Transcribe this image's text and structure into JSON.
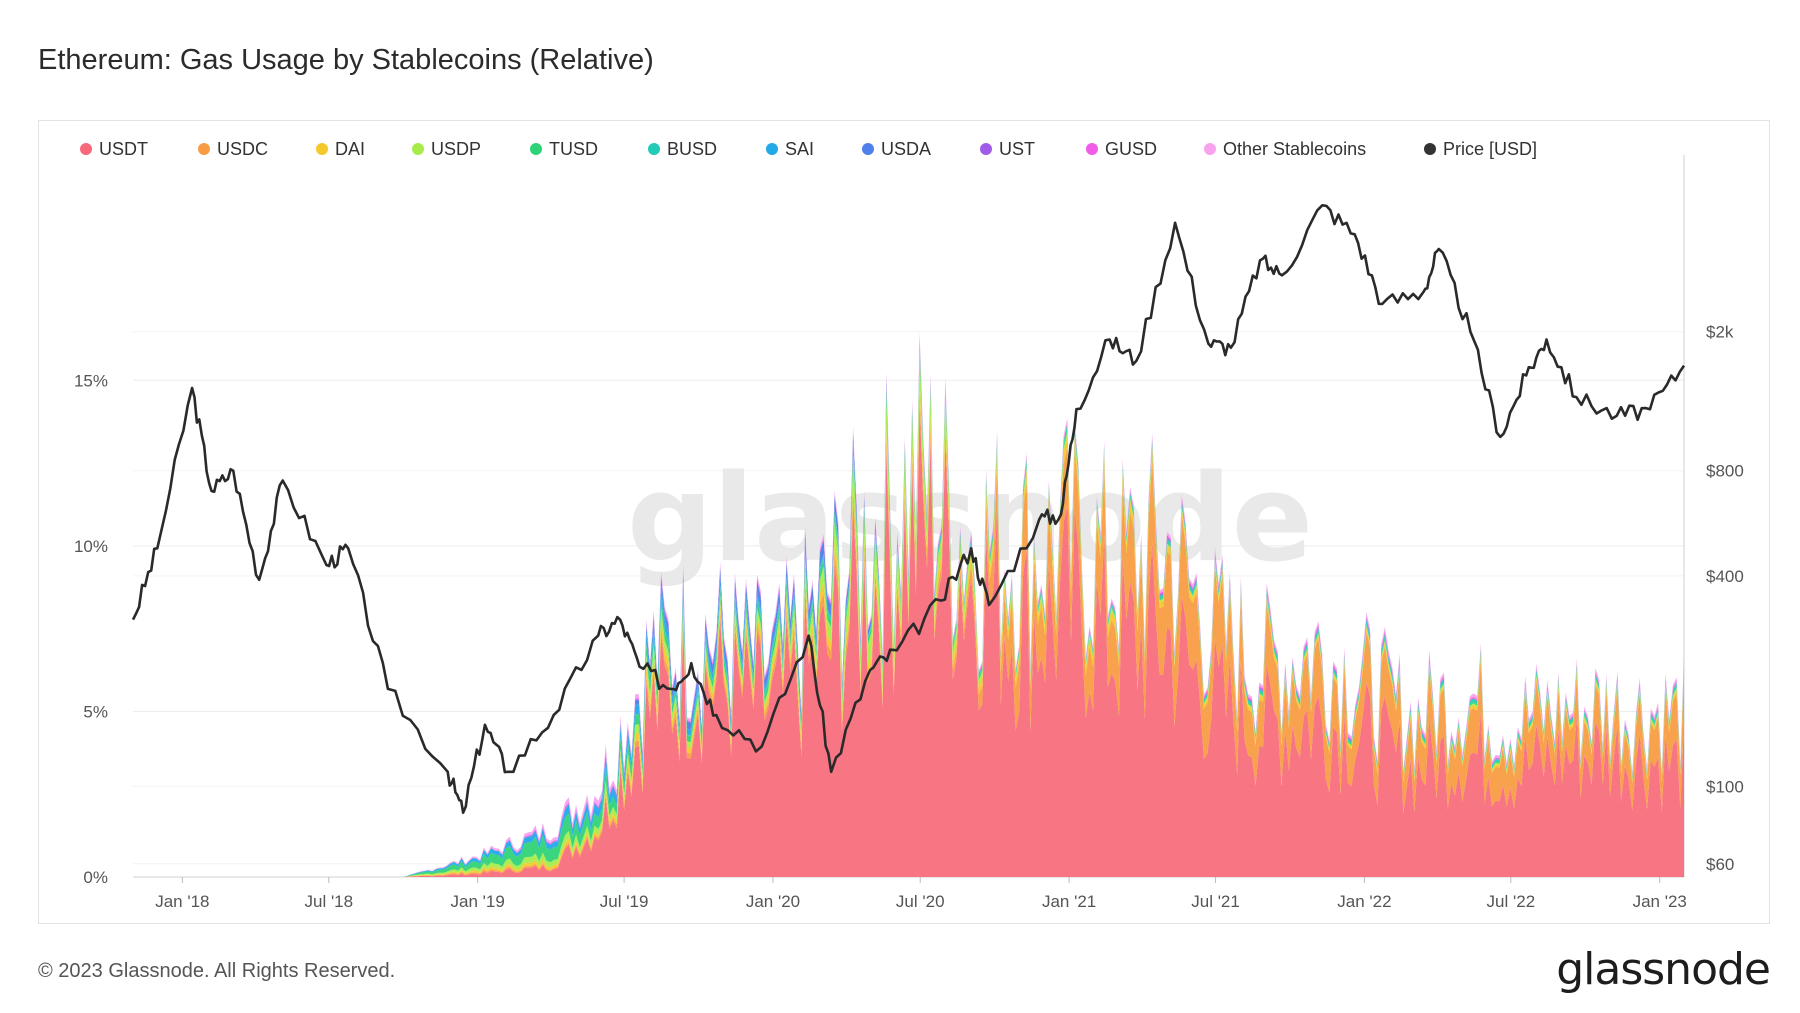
{
  "title": "Ethereum: Gas Usage by Stablecoins (Relative)",
  "watermark": "glassnode",
  "footer": "© 2023 Glassnode. All Rights Reserved.",
  "brand": "glassnode",
  "chart_data": {
    "type": "area",
    "legend_position": "top",
    "grid": true,
    "x_ticks": [
      "Jan '18",
      "Jul '18",
      "Jan '19",
      "Jul '19",
      "Jan '20",
      "Jul '20",
      "Jan '21",
      "Jul '21",
      "Jan '22",
      "Jul '22",
      "Jan '23"
    ],
    "x_range": [
      "2017-11-01",
      "2023-01-31"
    ],
    "y_left": {
      "ticks": [
        "0%",
        "5%",
        "10%",
        "15%"
      ],
      "tick_values": [
        0,
        5,
        10,
        15
      ],
      "range": [
        0,
        21.5
      ]
    },
    "y_right": {
      "ticks": [
        "$60",
        "$100",
        "$400",
        "$800",
        "$2k"
      ],
      "tick_values": [
        60,
        100,
        400,
        800,
        2000
      ],
      "scale": "log",
      "range": [
        55,
        6000
      ]
    },
    "legend": [
      {
        "name": "USDT",
        "color": "#f7697a"
      },
      {
        "name": "USDC",
        "color": "#f99d45"
      },
      {
        "name": "DAI",
        "color": "#f5c82d"
      },
      {
        "name": "USDP",
        "color": "#a8eb4b"
      },
      {
        "name": "TUSD",
        "color": "#2fd377"
      },
      {
        "name": "BUSD",
        "color": "#22ccb4"
      },
      {
        "name": "SAI",
        "color": "#22a9e8"
      },
      {
        "name": "USDA",
        "color": "#4f7fe8"
      },
      {
        "name": "UST",
        "color": "#a05ce8"
      },
      {
        "name": "GUSD",
        "color": "#f05ce8"
      },
      {
        "name": "Other Stablecoins",
        "color": "#f7a3ee"
      },
      {
        "name": "Price [USD]",
        "color": "#333333"
      }
    ],
    "dates": [
      "2017-11-01",
      "2018-01-01",
      "2018-04-01",
      "2018-07-01",
      "2018-10-01",
      "2019-01-01",
      "2019-04-01",
      "2019-06-01",
      "2019-08-01",
      "2019-10-01",
      "2020-01-01",
      "2020-03-01",
      "2020-05-01",
      "2020-07-01",
      "2020-09-01",
      "2020-11-01",
      "2021-01-01",
      "2021-03-01",
      "2021-05-01",
      "2021-07-01",
      "2021-09-01",
      "2021-11-01",
      "2022-01-01",
      "2022-03-01",
      "2022-05-01",
      "2022-07-01",
      "2022-09-01",
      "2022-11-01",
      "2023-01-31"
    ],
    "series": [
      {
        "name": "USDT",
        "values": [
          0.0,
          0.0,
          0.0,
          0.0,
          0.0,
          0.1,
          0.3,
          1.5,
          5.0,
          6.0,
          5.0,
          6.5,
          8.5,
          10.5,
          9.0,
          7.5,
          8.0,
          7.0,
          7.2,
          5.2,
          4.5,
          4.8,
          4.2,
          3.2,
          3.8,
          3.2,
          3.6,
          3.8,
          3.3
        ]
      },
      {
        "name": "USDC",
        "values": [
          0.0,
          0.0,
          0.0,
          0.0,
          0.0,
          0.05,
          0.05,
          0.1,
          0.2,
          0.2,
          0.2,
          0.3,
          0.3,
          0.3,
          0.4,
          1.8,
          1.5,
          1.8,
          2.3,
          1.8,
          1.5,
          1.7,
          1.3,
          1.2,
          1.4,
          1.2,
          1.1,
          1.0,
          1.3
        ]
      },
      {
        "name": "DAI",
        "values": [
          0.0,
          0.0,
          0.0,
          0.0,
          0.0,
          0.05,
          0.1,
          0.1,
          0.3,
          0.2,
          0.2,
          0.3,
          0.3,
          0.4,
          0.3,
          0.3,
          0.3,
          0.3,
          0.2,
          0.15,
          0.15,
          0.1,
          0.1,
          0.1,
          0.1,
          0.1,
          0.1,
          0.1,
          0.1
        ]
      },
      {
        "name": "USDP",
        "values": [
          0.0,
          0.0,
          0.0,
          0.0,
          0.0,
          0.1,
          0.2,
          0.2,
          0.3,
          0.2,
          0.2,
          0.4,
          0.8,
          0.7,
          0.3,
          0.1,
          0.1,
          0.1,
          0.05,
          0.05,
          0.05,
          0.05,
          0.05,
          0.05,
          0.05,
          0.05,
          0.05,
          0.05,
          0.05
        ]
      },
      {
        "name": "TUSD",
        "values": [
          0.0,
          0.0,
          0.0,
          0.0,
          0.0,
          0.2,
          0.5,
          0.4,
          0.3,
          0.2,
          0.2,
          0.2,
          0.2,
          0.1,
          0.1,
          0.1,
          0.1,
          0.05,
          0.05,
          0.05,
          0.05,
          0.05,
          0.05,
          0.05,
          0.05,
          0.05,
          0.05,
          0.05,
          0.05
        ]
      },
      {
        "name": "BUSD",
        "values": [
          0.0,
          0.0,
          0.0,
          0.0,
          0.0,
          0.0,
          0.0,
          0.0,
          0.0,
          0.05,
          0.1,
          0.1,
          0.1,
          0.1,
          0.1,
          0.1,
          0.1,
          0.1,
          0.1,
          0.1,
          0.1,
          0.1,
          0.1,
          0.1,
          0.1,
          0.1,
          0.1,
          0.1,
          0.1
        ]
      },
      {
        "name": "SAI",
        "values": [
          0.0,
          0.0,
          0.0,
          0.0,
          0.0,
          0.1,
          0.2,
          0.3,
          0.3,
          0.2,
          0.1,
          0.05,
          0.0,
          0.0,
          0.0,
          0.0,
          0.0,
          0.0,
          0.0,
          0.0,
          0.0,
          0.0,
          0.0,
          0.0,
          0.0,
          0.0,
          0.0,
          0.0,
          0.0
        ]
      },
      {
        "name": "USDA",
        "values": [
          0.0,
          0.0,
          0.0,
          0.0,
          0.0,
          0.0,
          0.0,
          0.05,
          0.2,
          0.3,
          0.3,
          0.4,
          0.2,
          0.1,
          0.05,
          0.0,
          0.0,
          0.0,
          0.0,
          0.0,
          0.0,
          0.0,
          0.0,
          0.0,
          0.0,
          0.0,
          0.0,
          0.0,
          0.0
        ]
      },
      {
        "name": "UST",
        "values": [
          0.0,
          0.0,
          0.0,
          0.0,
          0.0,
          0.0,
          0.0,
          0.0,
          0.0,
          0.0,
          0.0,
          0.0,
          0.0,
          0.0,
          0.0,
          0.0,
          0.0,
          0.0,
          0.05,
          0.05,
          0.05,
          0.05,
          0.05,
          0.05,
          0.0,
          0.0,
          0.0,
          0.0,
          0.0
        ]
      },
      {
        "name": "GUSD",
        "values": [
          0.0,
          0.0,
          0.0,
          0.0,
          0.0,
          0.0,
          0.05,
          0.05,
          0.05,
          0.05,
          0.05,
          0.05,
          0.05,
          0.05,
          0.05,
          0.05,
          0.05,
          0.05,
          0.05,
          0.05,
          0.05,
          0.05,
          0.05,
          0.05,
          0.05,
          0.05,
          0.05,
          0.05,
          0.05
        ]
      },
      {
        "name": "Other Stablecoins",
        "values": [
          0.0,
          0.0,
          0.0,
          0.0,
          0.0,
          0.05,
          0.1,
          0.2,
          0.1,
          0.1,
          0.1,
          0.1,
          0.1,
          0.1,
          0.1,
          0.1,
          0.1,
          0.1,
          0.1,
          0.1,
          0.1,
          0.1,
          0.1,
          0.1,
          0.1,
          0.1,
          0.1,
          0.1,
          0.1
        ]
      }
    ],
    "price": {
      "name": "Price [USD]",
      "dates": [
        "2017-11-01",
        "2017-12-01",
        "2018-01-13",
        "2018-02-06",
        "2018-03-05",
        "2018-04-06",
        "2018-05-05",
        "2018-06-28",
        "2018-07-25",
        "2018-09-12",
        "2018-11-25",
        "2018-12-14",
        "2019-01-10",
        "2019-02-07",
        "2019-04-05",
        "2019-05-30",
        "2019-06-26",
        "2019-07-20",
        "2019-08-28",
        "2019-09-22",
        "2019-10-23",
        "2019-12-18",
        "2020-02-14",
        "2020-03-13",
        "2020-04-30",
        "2020-06-02",
        "2020-07-27",
        "2020-09-02",
        "2020-09-24",
        "2020-11-25",
        "2020-12-22",
        "2021-01-10",
        "2021-02-20",
        "2021-03-25",
        "2021-05-12",
        "2021-06-22",
        "2021-07-20",
        "2021-08-25",
        "2021-09-21",
        "2021-11-10",
        "2021-12-20",
        "2022-01-23",
        "2022-03-15",
        "2022-04-03",
        "2022-05-12",
        "2022-06-18",
        "2022-07-20",
        "2022-08-14",
        "2022-09-20",
        "2022-11-09",
        "2022-12-20",
        "2023-01-31"
      ],
      "values": [
        300,
        480,
        1380,
        700,
        800,
        390,
        750,
        430,
        480,
        190,
        110,
        84,
        150,
        110,
        160,
        270,
        300,
        220,
        190,
        225,
        160,
        130,
        270,
        110,
        215,
        245,
        340,
        480,
        330,
        580,
        600,
        1200,
        1900,
        1650,
        4100,
        1850,
        1800,
        3200,
        2900,
        4600,
        3800,
        2400,
        2600,
        3450,
        2000,
        1000,
        1500,
        1900,
        1300,
        1150,
        1200,
        1600
      ]
    }
  }
}
